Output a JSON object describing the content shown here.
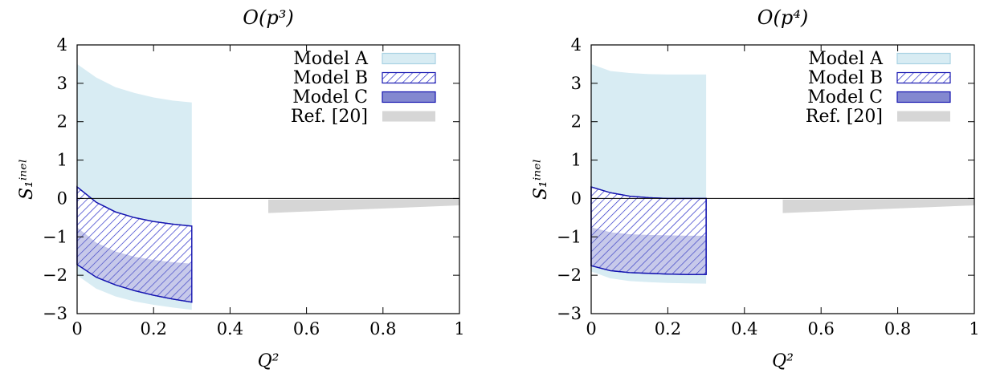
{
  "colors": {
    "model_a": "#d8ecf3",
    "model_b_hatch": "#2a2fc8",
    "model_b_edge": "#1414b0",
    "model_c_fill": "#6d73c8",
    "ref_fill": "#d6d6d6"
  },
  "chart_data": [
    {
      "type": "area",
      "title": "O(p³)",
      "xlabel": "Q²",
      "ylabel": "S₁ⁱⁿᵉˡ",
      "xlim": [
        0,
        1
      ],
      "ylim": [
        -3,
        4
      ],
      "xticks": [
        0,
        0.2,
        0.4,
        0.6,
        0.8,
        1
      ],
      "xtick_labels": [
        "0",
        "0.2",
        "0.4",
        "0.6",
        "0.8",
        "1"
      ],
      "yticks": [
        -3,
        -2,
        -1,
        0,
        1,
        2,
        3,
        4
      ],
      "ytick_labels": [
        "−3",
        "−2",
        "−1",
        "0",
        "1",
        "2",
        "3",
        "4"
      ],
      "legend_position": "top-right",
      "series": [
        {
          "name": "Model A",
          "style": "light-fill",
          "x": [
            0,
            0.05,
            0.1,
            0.15,
            0.2,
            0.25,
            0.3
          ],
          "upper": [
            3.5,
            3.15,
            2.9,
            2.75,
            2.63,
            2.55,
            2.5
          ],
          "lower": [
            -2.0,
            -2.35,
            -2.55,
            -2.68,
            -2.77,
            -2.84,
            -2.9
          ]
        },
        {
          "name": "Model B",
          "style": "hatched",
          "x": [
            0,
            0.05,
            0.1,
            0.15,
            0.2,
            0.25,
            0.3
          ],
          "upper": [
            0.3,
            -0.1,
            -0.35,
            -0.5,
            -0.6,
            -0.67,
            -0.72
          ],
          "lower": [
            -1.72,
            -2.05,
            -2.25,
            -2.4,
            -2.52,
            -2.62,
            -2.7
          ]
        },
        {
          "name": "Model C",
          "style": "dark-fill",
          "x": [
            0,
            0.05,
            0.1,
            0.15,
            0.2,
            0.25,
            0.3
          ],
          "upper": [
            -0.75,
            -1.15,
            -1.38,
            -1.52,
            -1.6,
            -1.66,
            -1.7
          ],
          "lower": [
            -1.72,
            -2.05,
            -2.25,
            -2.4,
            -2.52,
            -2.62,
            -2.7
          ]
        },
        {
          "name": "Ref. [20]",
          "style": "gray-fill",
          "x": [
            0.5,
            1.0
          ],
          "upper": [
            -0.03,
            -0.01
          ],
          "lower": [
            -0.38,
            -0.18
          ]
        }
      ]
    },
    {
      "type": "area",
      "title": "O(p⁴)",
      "xlabel": "Q²",
      "ylabel": "S₁ⁱⁿᵉˡ",
      "xlim": [
        0,
        1
      ],
      "ylim": [
        -3,
        4
      ],
      "xticks": [
        0,
        0.2,
        0.4,
        0.6,
        0.8,
        1
      ],
      "xtick_labels": [
        "0",
        "0.2",
        "0.4",
        "0.6",
        "0.8",
        "1"
      ],
      "yticks": [
        -3,
        -2,
        -1,
        0,
        1,
        2,
        3,
        4
      ],
      "ytick_labels": [
        "−3",
        "−2",
        "−1",
        "0",
        "1",
        "2",
        "3",
        "4"
      ],
      "legend_position": "top-right",
      "series": [
        {
          "name": "Model A",
          "style": "light-fill",
          "x": [
            0,
            0.05,
            0.1,
            0.15,
            0.2,
            0.25,
            0.3
          ],
          "upper": [
            3.5,
            3.32,
            3.27,
            3.24,
            3.23,
            3.23,
            3.23
          ],
          "lower": [
            -1.9,
            -2.08,
            -2.15,
            -2.18,
            -2.2,
            -2.21,
            -2.22
          ]
        },
        {
          "name": "Model B",
          "style": "hatched",
          "x": [
            0,
            0.05,
            0.1,
            0.15,
            0.2,
            0.25,
            0.3
          ],
          "upper": [
            0.3,
            0.15,
            0.06,
            0.02,
            0.0,
            0.0,
            0.0
          ],
          "lower": [
            -1.75,
            -1.88,
            -1.93,
            -1.95,
            -1.97,
            -1.98,
            -1.98
          ]
        },
        {
          "name": "Model C",
          "style": "dark-fill",
          "x": [
            0,
            0.05,
            0.1,
            0.15,
            0.2,
            0.25,
            0.3
          ],
          "upper": [
            -0.75,
            -0.88,
            -0.93,
            -0.95,
            -0.96,
            -0.97,
            -0.97
          ],
          "lower": [
            -1.75,
            -1.88,
            -1.93,
            -1.95,
            -1.97,
            -1.98,
            -1.98
          ]
        },
        {
          "name": "Ref. [20]",
          "style": "gray-fill",
          "x": [
            0.5,
            1.0
          ],
          "upper": [
            -0.03,
            -0.01
          ],
          "lower": [
            -0.38,
            -0.18
          ]
        }
      ]
    }
  ]
}
